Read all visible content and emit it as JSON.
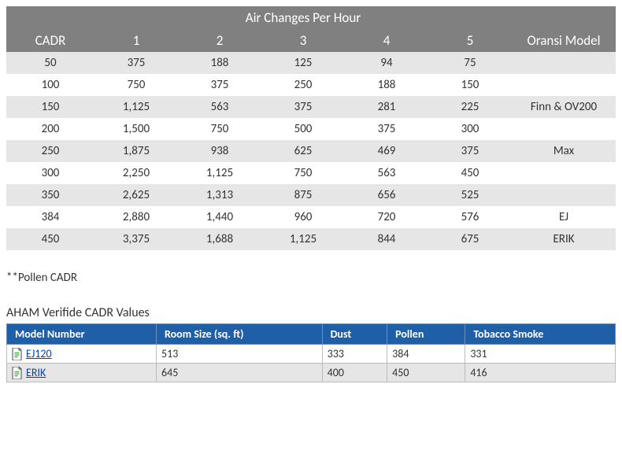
{
  "table1": {
    "title": "Air Changes Per Hour",
    "header_cols": [
      "CADR",
      "1",
      "2",
      "3",
      "4",
      "5",
      "Oransi Model"
    ],
    "rows": [
      {
        "cadr": "50",
        "v": [
          "375",
          "188",
          "125",
          "94",
          "75"
        ],
        "model": ""
      },
      {
        "cadr": "100",
        "v": [
          "750",
          "375",
          "250",
          "188",
          "150"
        ],
        "model": ""
      },
      {
        "cadr": "150",
        "v": [
          "1,125",
          "563",
          "375",
          "281",
          "225"
        ],
        "model": "Finn & OV200"
      },
      {
        "cadr": "200",
        "v": [
          "1,500",
          "750",
          "500",
          "375",
          "300"
        ],
        "model": ""
      },
      {
        "cadr": "250",
        "v": [
          "1,875",
          "938",
          "625",
          "469",
          "375"
        ],
        "model": "Max"
      },
      {
        "cadr": "300",
        "v": [
          "2,250",
          "1,125",
          "750",
          "563",
          "450"
        ],
        "model": ""
      },
      {
        "cadr": "350",
        "v": [
          "2,625",
          "1,313",
          "875",
          "656",
          "525"
        ],
        "model": ""
      },
      {
        "cadr": "384",
        "v": [
          "2,880",
          "1,440",
          "960",
          "720",
          "576"
        ],
        "model": "EJ"
      },
      {
        "cadr": "450",
        "v": [
          "3,375",
          "1,688",
          "1,125",
          "844",
          "675"
        ],
        "model": "ERIK"
      }
    ],
    "colors": {
      "header_bg": "#808080",
      "header_fg": "#ffffff",
      "row_odd_bg": "#e6e6e6",
      "row_even_bg": "#ffffff"
    }
  },
  "note": "**Pollen CADR",
  "subheading": "AHAM Verifide CADR Values",
  "table2": {
    "columns": [
      "Model Number",
      "Room Size (sq. ft)",
      "Dust",
      "Pollen",
      "Tobacco Smoke"
    ],
    "rows": [
      {
        "model": "EJ120",
        "room": "513",
        "dust": "333",
        "pollen": "384",
        "smoke": "331"
      },
      {
        "model": "ERIK",
        "room": "645",
        "dust": "400",
        "pollen": "450",
        "smoke": "416"
      }
    ],
    "colors": {
      "header_bg": "#1f5fa8",
      "header_fg": "#ffffff",
      "link": "#0645ad",
      "row_odd_bg": "#ffffff",
      "row_even_bg": "#e6e6e6",
      "border": "#bbbbbb"
    }
  }
}
